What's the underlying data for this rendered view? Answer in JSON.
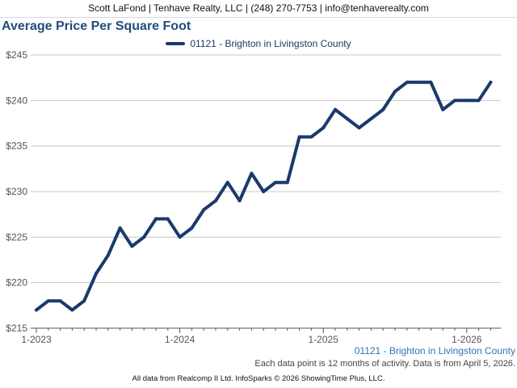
{
  "header": {
    "contact": "Scott LaFond | Tenhave Realty, LLC | (248) 270-7753 | info@tenhaverealty.com"
  },
  "footer": {
    "series_label": "01121 - Brighton in Livingston County",
    "note": "Each data point is 12 months of activity. Data is from April 5, 2026.",
    "credit": "All data from Realcomp II Ltd. InfoSparks © 2026 ShowingTime Plus, LLC."
  },
  "chart_data": {
    "type": "line",
    "title": "Average Price Per Square Foot",
    "xlabel": "",
    "ylabel": "",
    "ylim": [
      215,
      245
    ],
    "yticks": [
      "$215",
      "$220",
      "$225",
      "$230",
      "$235",
      "$240",
      "$245"
    ],
    "xticks": [
      "1-2023",
      "1-2024",
      "1-2025",
      "1-2026"
    ],
    "legend_position": "top-center",
    "grid": "horizontal",
    "color": "#1a3a6b",
    "x": [
      "2023-01",
      "2023-02",
      "2023-03",
      "2023-04",
      "2023-05",
      "2023-06",
      "2023-07",
      "2023-08",
      "2023-09",
      "2023-10",
      "2023-11",
      "2023-12",
      "2024-01",
      "2024-02",
      "2024-03",
      "2024-04",
      "2024-05",
      "2024-06",
      "2024-07",
      "2024-08",
      "2024-09",
      "2024-10",
      "2024-11",
      "2024-12",
      "2025-01",
      "2025-02",
      "2025-03",
      "2025-04",
      "2025-05",
      "2025-06",
      "2025-07",
      "2025-08",
      "2025-09",
      "2025-10",
      "2025-11",
      "2025-12",
      "2026-01",
      "2026-02",
      "2026-03"
    ],
    "series": [
      {
        "name": "01121 - Brighton in Livingston County",
        "values": [
          217,
          218,
          218,
          217,
          218,
          221,
          223,
          226,
          224,
          225,
          227,
          227,
          225,
          226,
          228,
          229,
          231,
          229,
          232,
          230,
          231,
          231,
          236,
          236,
          237,
          239,
          238,
          237,
          238,
          239,
          241,
          242,
          242,
          242,
          239,
          240,
          240,
          240,
          242
        ]
      }
    ]
  }
}
